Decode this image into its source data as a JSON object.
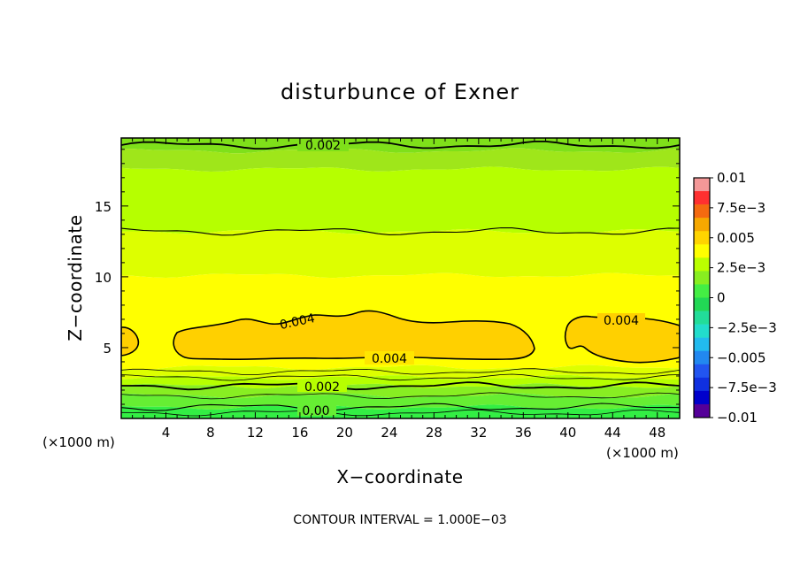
{
  "chart_data": {
    "type": "contour",
    "title": "disturbunce of Exner",
    "xlabel": "X−coordinate",
    "ylabel": "Z−coordinate",
    "x_unit_left": "(×1000 m)",
    "x_unit_right": "(×1000 m)",
    "footer": "CONTOUR INTERVAL = 1.000E−03",
    "xlim": [
      0,
      50
    ],
    "ylim": [
      0,
      19.8
    ],
    "x_ticks": [
      4,
      8,
      12,
      16,
      20,
      24,
      28,
      32,
      36,
      40,
      44,
      48
    ],
    "y_ticks": [
      5,
      10,
      15
    ],
    "contour_interval": 0.001,
    "colorbar": {
      "labels": [
        "0.01",
        "7.5e−3",
        "0.005",
        "2.5e−3",
        "0",
        "−2.5e−3",
        "−0.005",
        "−7.5e−3",
        "−0.01"
      ],
      "colors_top_to_bottom": [
        "#f49898",
        "#ff3030",
        "#f46a10",
        "#f6a800",
        "#ffd400",
        "#ffff00",
        "#bbff00",
        "#88ee20",
        "#44ee44",
        "#22d855",
        "#22dd99",
        "#22ddcc",
        "#22bbee",
        "#2288f0",
        "#2255f0",
        "#1030e0",
        "#0000cc",
        "#550099"
      ]
    },
    "bands": [
      {
        "from": 18.9,
        "to": 19.8,
        "color": "#7fe01a",
        "value_range": "0.001–0.002"
      },
      {
        "from": 17.6,
        "to": 18.9,
        "color": "#9fe61a",
        "value_range": "0.0015–0.002"
      },
      {
        "from": 13.2,
        "to": 17.6,
        "color": "#b6ff00",
        "value_range": "0.002–0.0025"
      },
      {
        "from": 10.1,
        "to": 13.2,
        "color": "#ddff00",
        "value_range": "0.0025–0.003"
      },
      {
        "from": 3.6,
        "to": 10.1,
        "color": "#ffff00",
        "value_range": "0.003–0.004"
      },
      {
        "from": 2.9,
        "to": 3.6,
        "color": "#ddff00",
        "value_range": "0.0025–0.003"
      },
      {
        "from": 2.3,
        "to": 2.9,
        "color": "#b6ff00",
        "value_range": "0.002–0.0025"
      },
      {
        "from": 1.6,
        "to": 2.3,
        "color": "#88ee22",
        "value_range": "0.0015–0.002"
      },
      {
        "from": 0.8,
        "to": 1.6,
        "color": "#66ee33",
        "value_range": "0.001–0.0015"
      },
      {
        "from": 0,
        "to": 0.8,
        "color": "#33ee44",
        "value_range": "0–0.001"
      }
    ],
    "contour_lines": [
      {
        "value": "0.002",
        "z": 19.3,
        "label": "0.002",
        "label_x": 18.3
      },
      {
        "value": "0.002",
        "z": 13.2
      },
      {
        "value": "0.002",
        "z": 2.3,
        "label": "0.002",
        "label_x": 18.0
      },
      {
        "value": "0.00",
        "z": 0.8,
        "label": "0.00",
        "label_x": 17.2
      }
    ],
    "regions_0004": [
      {
        "name": "left-edge",
        "x_range": [
          0,
          1.6
        ],
        "z_range": [
          4.3,
          6.4
        ]
      },
      {
        "name": "center",
        "x_range": [
          4.5,
          37.0
        ],
        "z_range": [
          4.1,
          7.6
        ],
        "label": "0.004"
      },
      {
        "name": "right",
        "x_range": [
          39.8,
          50
        ],
        "z_range": [
          4.1,
          7.3
        ],
        "label": "0.004"
      }
    ]
  }
}
